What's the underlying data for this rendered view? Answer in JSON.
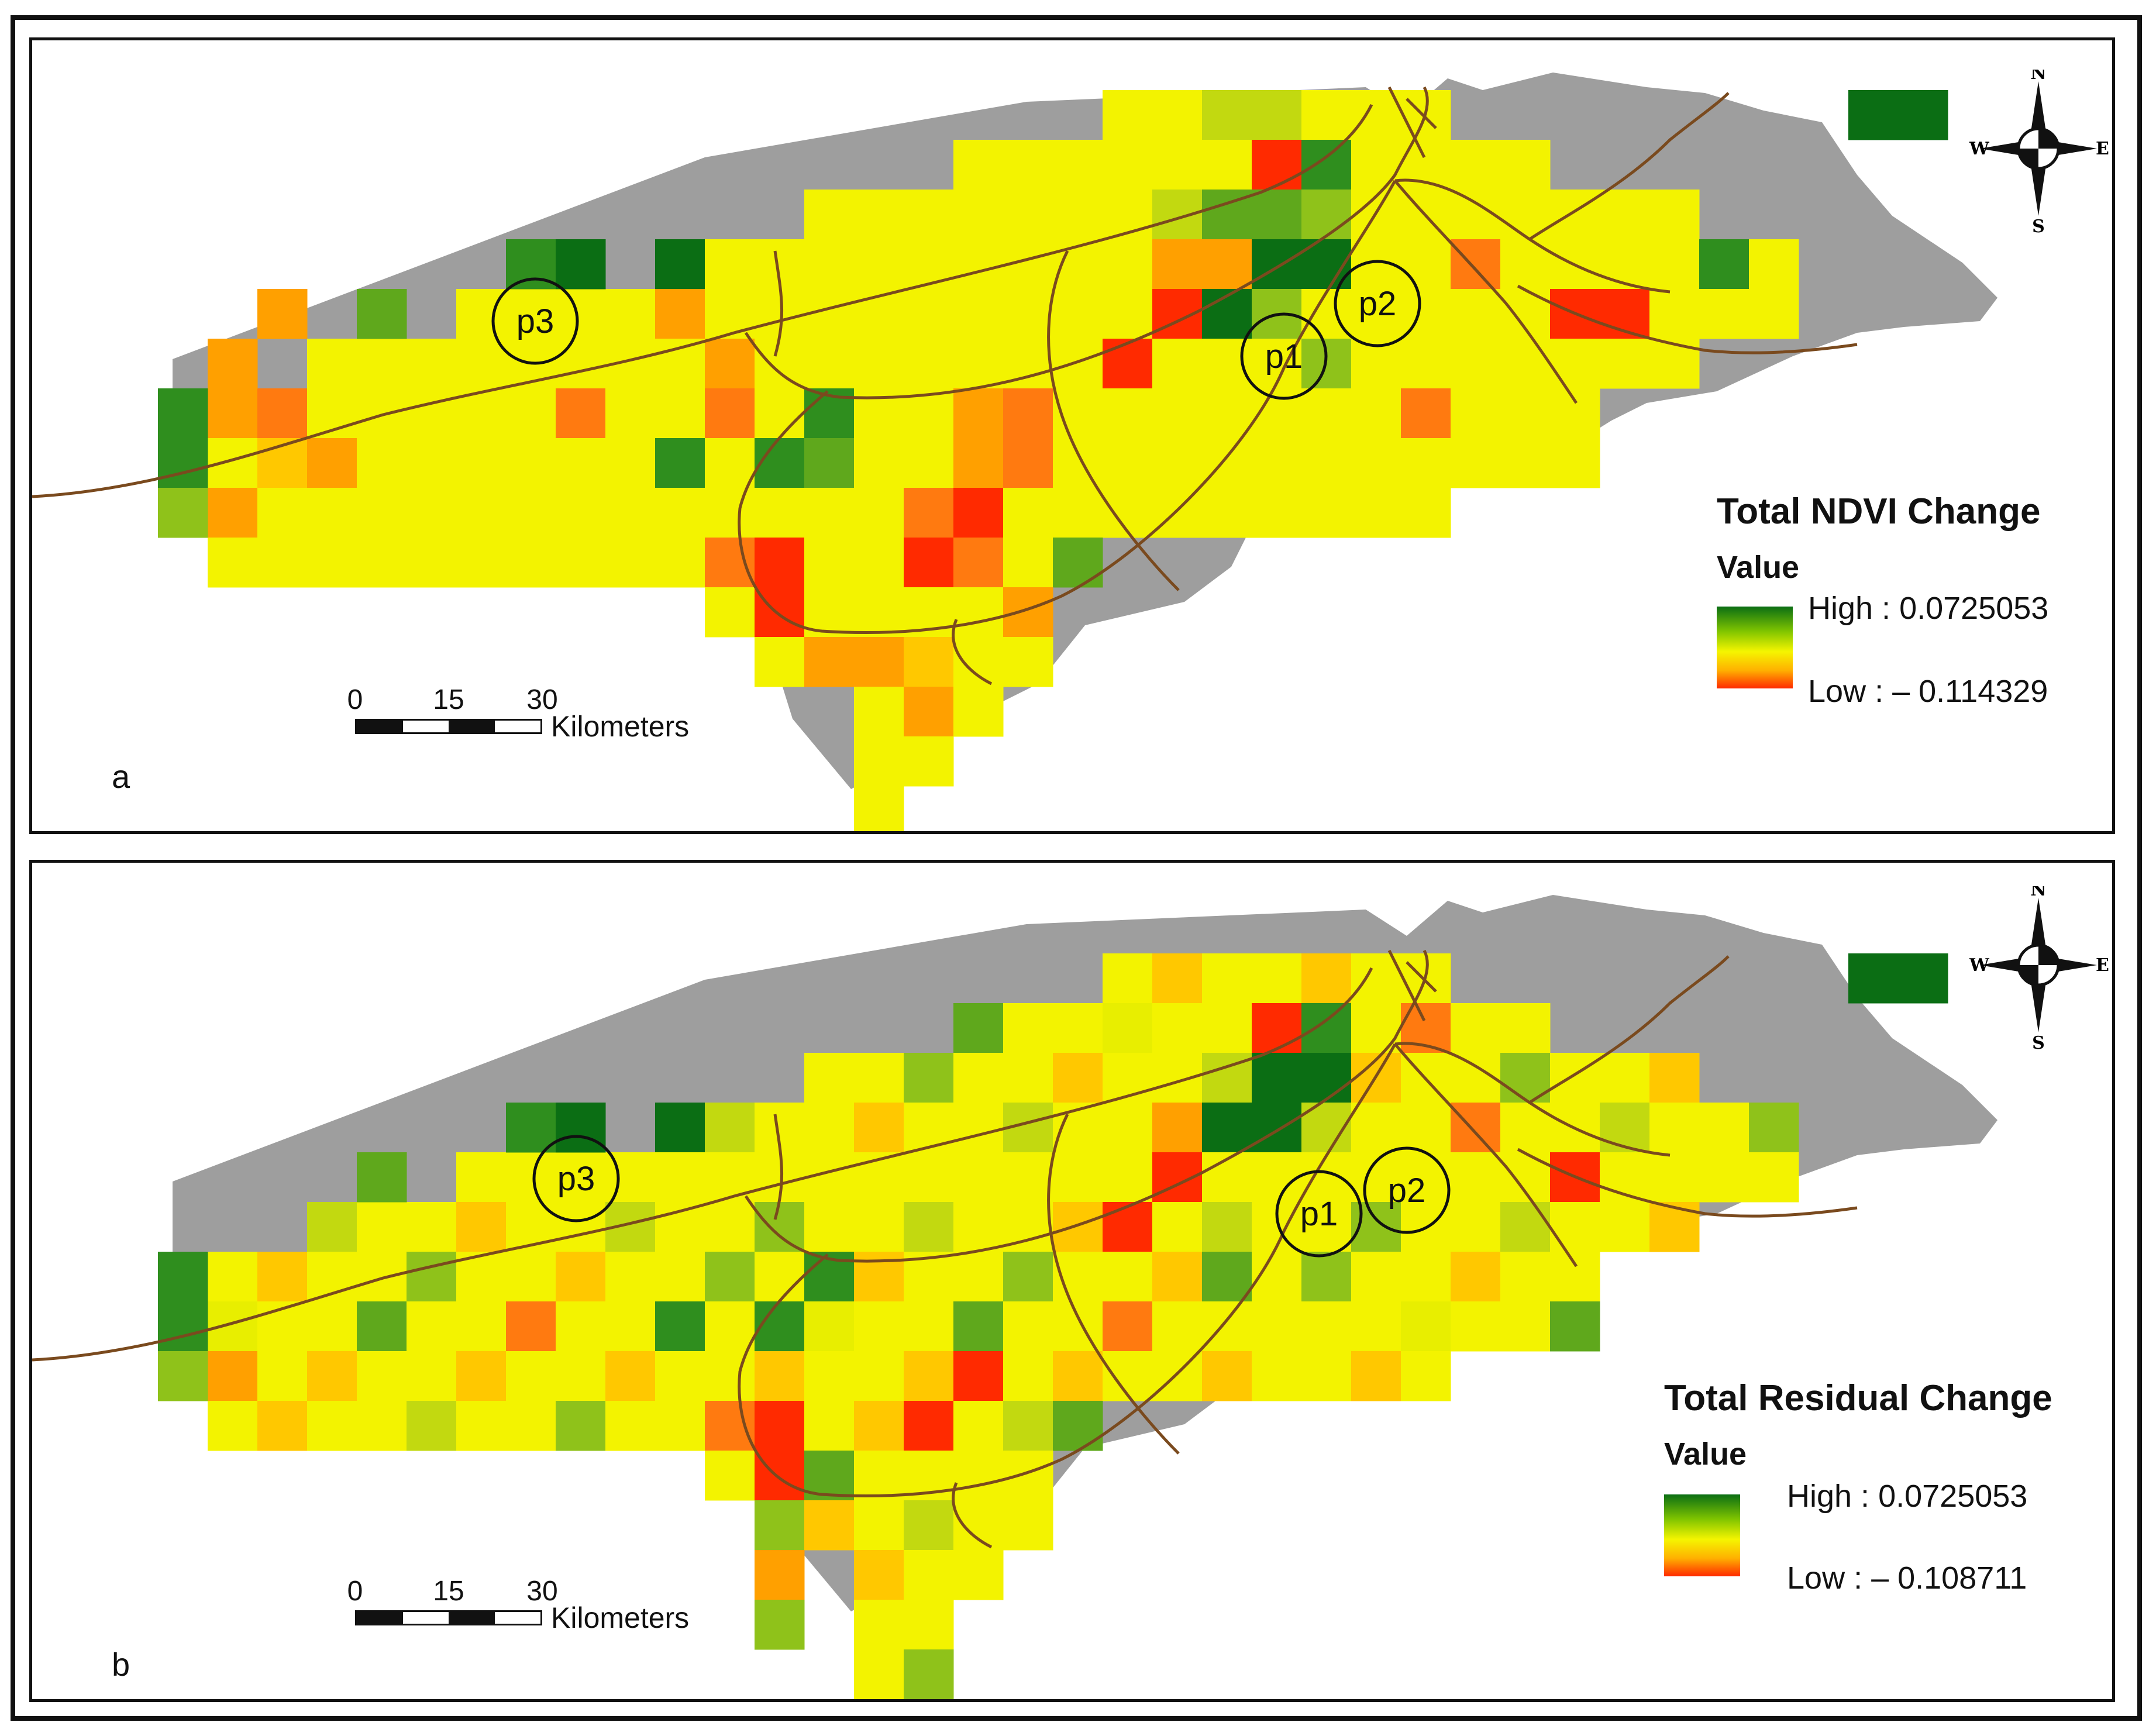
{
  "panels": [
    {
      "label": "a",
      "legend_title": "Total NDVI Change",
      "legend_sub": "Value",
      "high": "High : 0.0725053",
      "low": "Low : – 0.114329"
    },
    {
      "label": "b",
      "legend_title": "Total Residual Change",
      "legend_sub": "Value",
      "high": "High : 0.0725053",
      "low": "Low : – 0.108711"
    }
  ],
  "scalebar": {
    "ticks": [
      "0",
      "15",
      "30"
    ],
    "unit": "Kilometers"
  },
  "compass": {
    "n": "N",
    "s": "S",
    "e": "E",
    "w": "W"
  },
  "markers": [
    "p1",
    "p2",
    "p3"
  ],
  "colors": {
    "background_region": "#9e9e9e",
    "road": "#7a4a1e",
    "high": "#0b6e14",
    "low": "#ff2a00"
  }
}
